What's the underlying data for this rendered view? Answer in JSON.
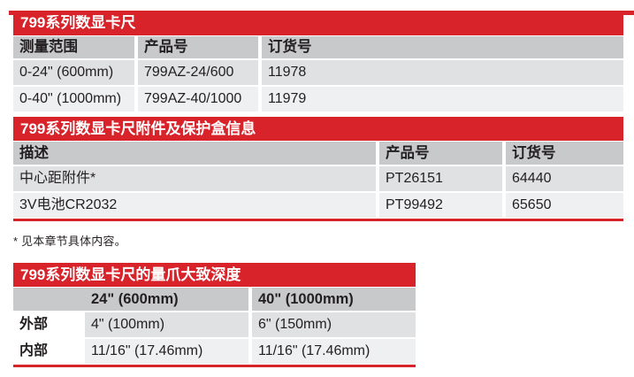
{
  "page": {
    "accent_red": "#d8232a",
    "header_gray": "#c8c9cb",
    "row_light": "#e0e1e3",
    "row_lighter": "#eef0f1"
  },
  "tables": [
    {
      "title": "799系列数显卡尺",
      "columns": [
        "测量范围",
        "产品号",
        "订货号"
      ],
      "rows": [
        [
          "0-24\" (600mm)",
          "799AZ-24/600",
          "11978"
        ],
        [
          "0-40\" (1000mm)",
          "799AZ-40/1000",
          "11979"
        ]
      ]
    },
    {
      "title": "799系列数显卡尺附件及保护盒信息",
      "columns": [
        "描述",
        "产品号",
        "订货号"
      ],
      "rows": [
        [
          "中心距附件*",
          "PT26151",
          "64440"
        ],
        [
          "3V电池CR2032",
          "PT99492",
          "65650"
        ]
      ]
    },
    {
      "title": "799系列数显卡尺的量爪大致深度",
      "columns": [
        "24\" (600mm)",
        "40\" (1000mm)"
      ],
      "rows": [
        [
          "外部",
          "4\" (100mm)",
          "6\" (150mm)"
        ],
        [
          "内部",
          "11/16\" (17.46mm)",
          "11/16\" (17.46mm)"
        ]
      ]
    }
  ],
  "footnote": "* 见本章节具体内容。"
}
